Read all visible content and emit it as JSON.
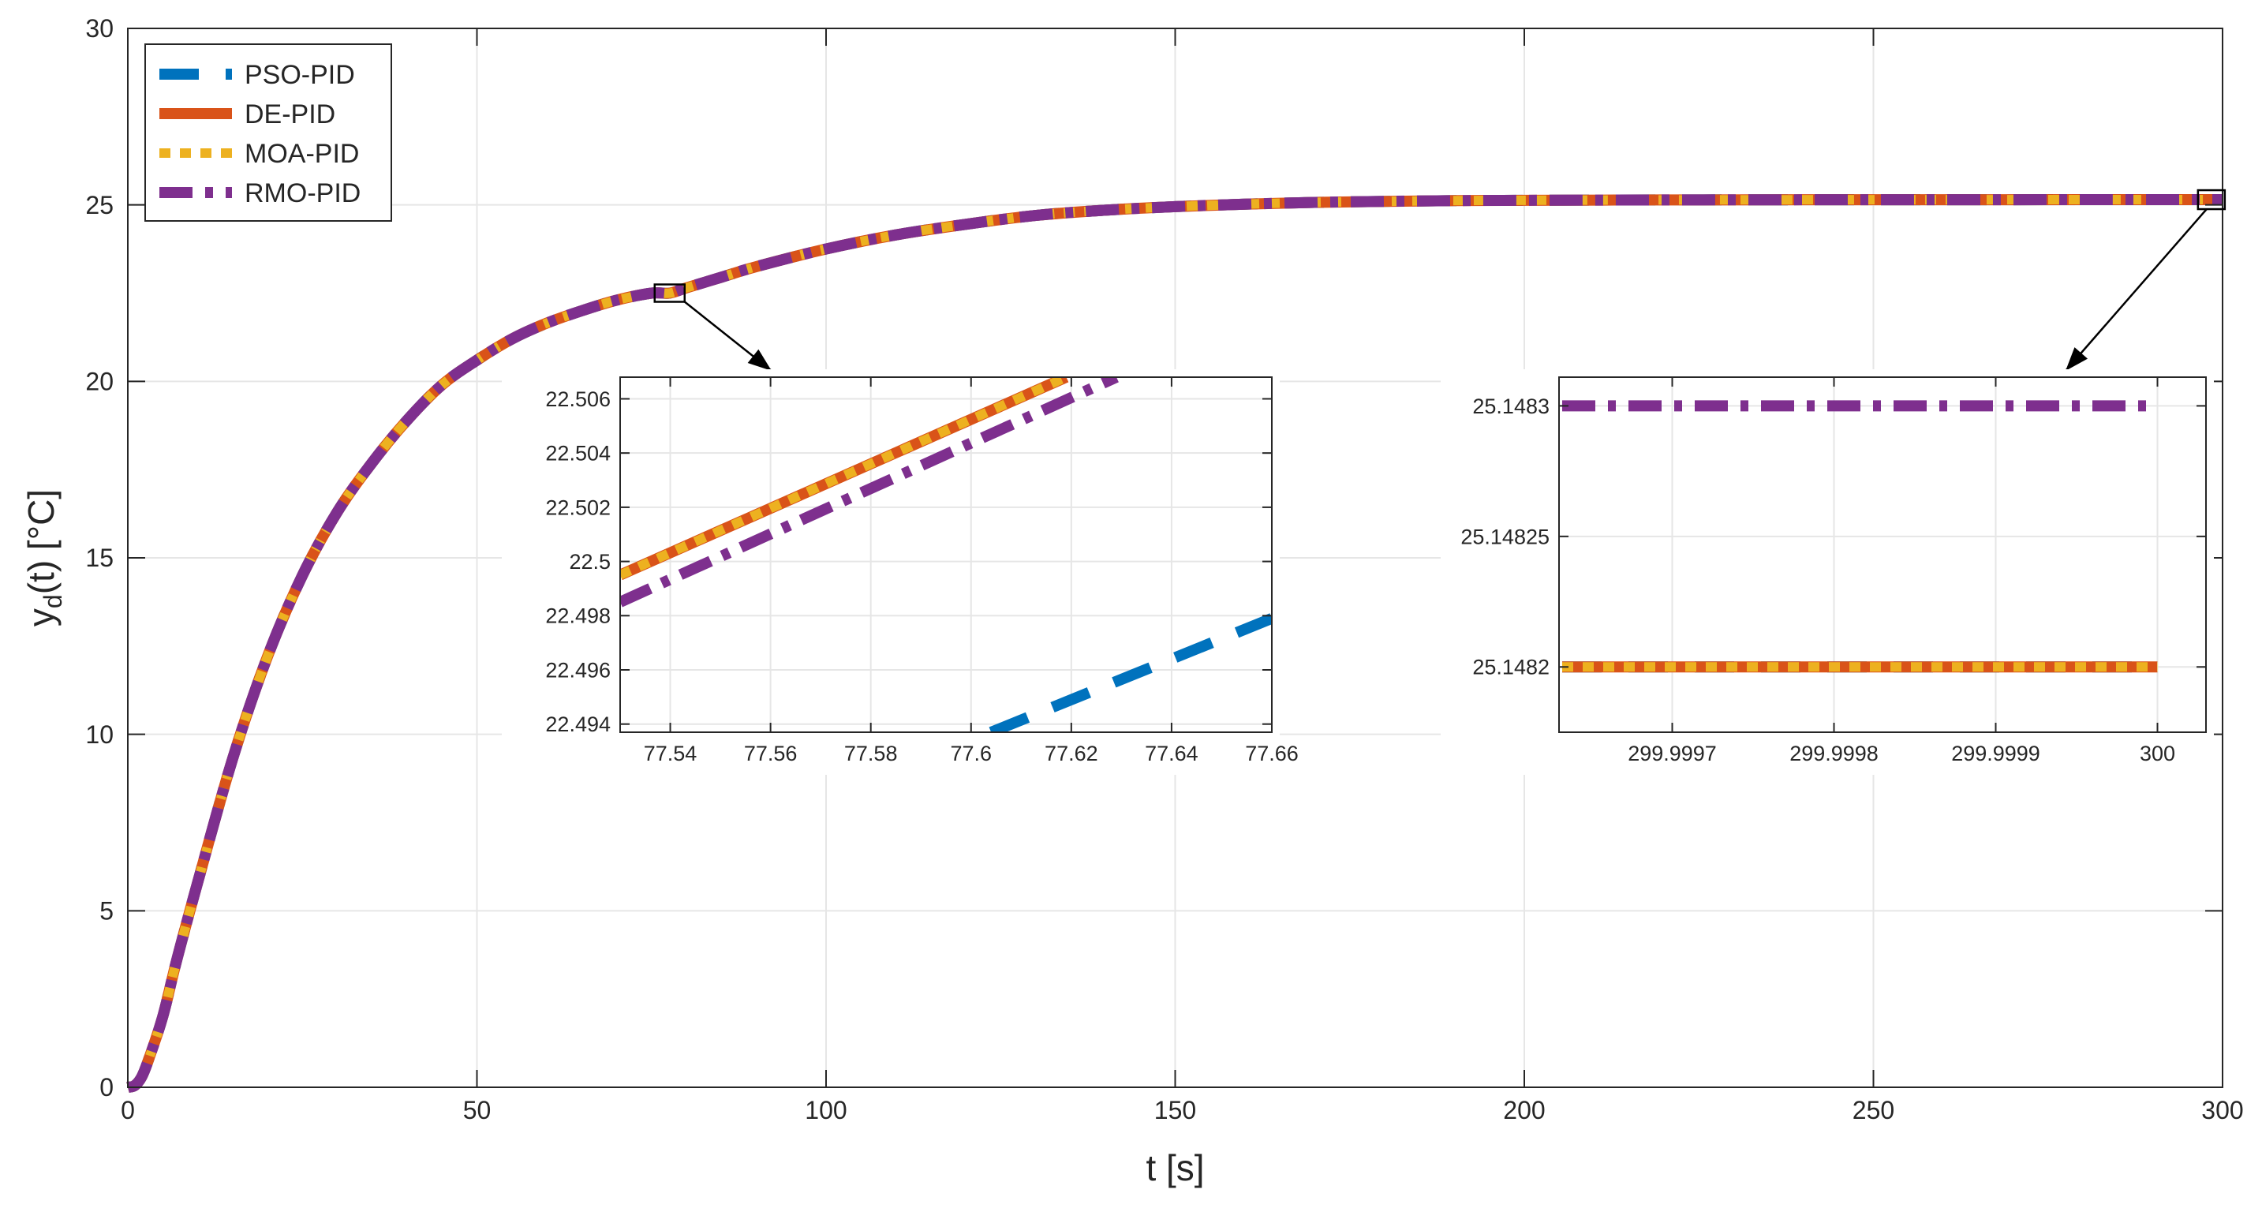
{
  "colors": {
    "pso": "#0072BD",
    "de": "#D95319",
    "moa": "#EDB120",
    "rmo": "#7E2F8E",
    "grid": "#e6e6e6",
    "axis": "#262626"
  },
  "chart_data": [
    {
      "id": "main",
      "type": "line",
      "title": "",
      "xlabel": "t [s]",
      "ylabel": "y_d(t) [°C]",
      "ylabel_main": "y",
      "ylabel_sub": "d",
      "ylabel_rest": "(t) [°C]",
      "xlim": [
        0,
        300
      ],
      "ylim": [
        0,
        30
      ],
      "grid": true,
      "legend_placement": "top-left",
      "xticks": [
        0,
        50,
        100,
        150,
        200,
        250,
        300
      ],
      "xtick_labels": [
        "0",
        "50",
        "100",
        "150",
        "200",
        "250",
        "300"
      ],
      "yticks": [
        0,
        5,
        10,
        15,
        20,
        25,
        30
      ],
      "ytick_labels": [
        "0",
        "5",
        "10",
        "15",
        "20",
        "25",
        "30"
      ],
      "series": [
        {
          "name": "PSO-PID",
          "style": "dashed",
          "color": "#0072BD"
        },
        {
          "name": "DE-PID",
          "style": "solid",
          "color": "#D95319"
        },
        {
          "name": "MOA-PID",
          "style": "dotted",
          "color": "#EDB120"
        },
        {
          "name": "RMO-PID",
          "style": "dash-dot",
          "color": "#7E2F8E"
        }
      ],
      "x": [
        0,
        1,
        2,
        3,
        5,
        7,
        10,
        15,
        20,
        25,
        30,
        35,
        40,
        45,
        50,
        55,
        60,
        65,
        70,
        75,
        77.6,
        80,
        85,
        90,
        100,
        110,
        120,
        130,
        140,
        150,
        160,
        170,
        180,
        190,
        200,
        220,
        240,
        260,
        280,
        300
      ],
      "y": [
        0,
        0.05,
        0.3,
        0.8,
        2.0,
        3.6,
        5.8,
        9.3,
        12.2,
        14.5,
        16.3,
        17.7,
        18.9,
        19.9,
        20.6,
        21.2,
        21.65,
        22.0,
        22.3,
        22.5,
        22.5,
        22.65,
        22.95,
        23.25,
        23.75,
        24.15,
        24.45,
        24.7,
        24.85,
        24.95,
        25.02,
        25.07,
        25.1,
        25.12,
        25.13,
        25.14,
        25.145,
        25.147,
        25.148,
        25.148
      ]
    },
    {
      "id": "inset-left",
      "type": "line",
      "title": "",
      "xlim": [
        77.53,
        77.66
      ],
      "ylim": [
        22.4937,
        22.5068
      ],
      "grid": true,
      "xticks": [
        77.54,
        77.56,
        77.58,
        77.6,
        77.62,
        77.64,
        77.66
      ],
      "xtick_labels": [
        "77.54",
        "77.56",
        "77.58",
        "77.6",
        "77.62",
        "77.64",
        "77.66"
      ],
      "yticks": [
        22.494,
        22.496,
        22.498,
        22.5,
        22.502,
        22.504,
        22.506
      ],
      "ytick_labels": [
        "22.494",
        "22.496",
        "22.498",
        "22.5",
        "22.502",
        "22.504",
        "22.506"
      ],
      "series": [
        {
          "name": "PSO-PID",
          "x": [
            77.604,
            77.66
          ],
          "y": [
            22.4937,
            22.4979
          ]
        },
        {
          "name": "DE-PID",
          "x": [
            77.53,
            77.619
          ],
          "y": [
            22.4995,
            22.5068
          ]
        },
        {
          "name": "MOA-PID",
          "x": [
            77.53,
            77.619
          ],
          "y": [
            22.4995,
            22.5068
          ]
        },
        {
          "name": "RMO-PID",
          "x": [
            77.53,
            77.629
          ],
          "y": [
            22.4985,
            22.5068
          ]
        }
      ]
    },
    {
      "id": "inset-right",
      "type": "line",
      "title": "",
      "xlim": [
        299.99963,
        300.00003
      ],
      "ylim": [
        25.148175,
        25.148311
      ],
      "grid": true,
      "xticks": [
        299.9997,
        299.9998,
        299.9999,
        300
      ],
      "xtick_labels": [
        "299.9997",
        "299.9998",
        "299.9999",
        "300"
      ],
      "yticks": [
        25.1482,
        25.14825,
        25.1483
      ],
      "ytick_labels": [
        "25.1482",
        "25.14825",
        "25.1483"
      ],
      "series": [
        {
          "name": "PSO-PID",
          "x": [
            299.99963,
            300
          ],
          "y": [
            25.1482,
            25.1482
          ]
        },
        {
          "name": "DE-PID",
          "x": [
            299.99963,
            300
          ],
          "y": [
            25.1482,
            25.1482
          ]
        },
        {
          "name": "MOA-PID",
          "x": [
            299.99963,
            300
          ],
          "y": [
            25.1482,
            25.1482
          ]
        },
        {
          "name": "RMO-PID",
          "x": [
            299.99963,
            300
          ],
          "y": [
            25.1483,
            25.1483
          ]
        }
      ]
    }
  ]
}
